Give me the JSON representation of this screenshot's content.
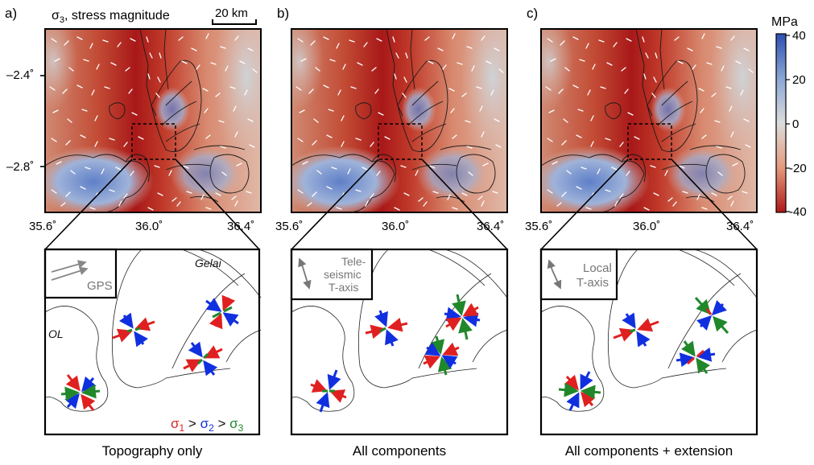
{
  "panels": [
    {
      "letter": "a)",
      "title_sigma": "σ",
      "title_sub": "3",
      "title_rest": ", stress magnitude",
      "caption": "Topography only",
      "inset": {
        "line1": "",
        "line2": "",
        "line3": "GPS"
      }
    },
    {
      "letter": "b)",
      "caption": "All components",
      "inset": {
        "line1": "Tele-",
        "line2": "seismic",
        "line3": "T-axis"
      }
    },
    {
      "letter": "c)",
      "caption": "All components + extension",
      "inset": {
        "line1": "",
        "line2": "Local",
        "line3": "T-axis"
      }
    }
  ],
  "scale_bar": "20 km",
  "lat_ticks": [
    "–2.4˚",
    "–2.8˚"
  ],
  "lon_ticks": [
    "35.6˚",
    "36.0˚",
    "36.4˚"
  ],
  "place_labels": {
    "gelai": "Gelai",
    "ol": "OL"
  },
  "legend": {
    "s1": "σ",
    "s1_sub": "1",
    "gt1": " > ",
    "s2": "σ",
    "s2_sub": "2",
    "gt2": " > ",
    "s3": "σ",
    "s3_sub": "3"
  },
  "colorbar": {
    "unit": "MPa",
    "ticks": [
      "40",
      "20",
      "0",
      "-20",
      "-40"
    ],
    "colors": {
      "top": "#2c4fb0",
      "upper": "#8aa6d6",
      "mid": "#dcdcdc",
      "lower": "#e59a7c",
      "bottom": "#b01818"
    }
  },
  "stress_colors": {
    "sigma1": "#e02020",
    "sigma2": "#1030e0",
    "sigma3": "#20882a"
  }
}
